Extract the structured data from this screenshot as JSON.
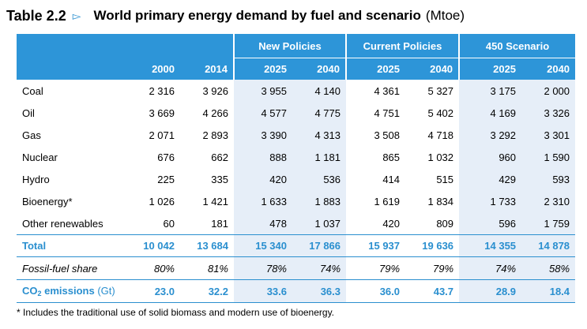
{
  "title": {
    "number": "Table 2.2",
    "arrow": "▻",
    "main": "World primary energy demand by fuel and scenario",
    "unit": "(Mtoe)"
  },
  "header": {
    "groups": [
      "New Policies",
      "Current Policies",
      "450 Scenario"
    ],
    "years": [
      "2000",
      "2014",
      "2025",
      "2040",
      "2025",
      "2040",
      "2025",
      "2040"
    ]
  },
  "rows": [
    {
      "label": "Coal",
      "values": [
        "2 316",
        "3 926",
        "3 955",
        "4 140",
        "4 361",
        "5 327",
        "3 175",
        "2 000"
      ]
    },
    {
      "label": "Oil",
      "values": [
        "3 669",
        "4 266",
        "4 577",
        "4 775",
        "4 751",
        "5 402",
        "4 169",
        "3 326"
      ]
    },
    {
      "label": "Gas",
      "values": [
        "2 071",
        "2 893",
        "3 390",
        "4 313",
        "3 508",
        "4 718",
        "3 292",
        "3 301"
      ]
    },
    {
      "label": "Nuclear",
      "values": [
        "676",
        "662",
        "888",
        "1 181",
        "865",
        "1 032",
        "960",
        "1 590"
      ]
    },
    {
      "label": "Hydro",
      "values": [
        "225",
        "335",
        "420",
        "536",
        "414",
        "515",
        "429",
        "593"
      ]
    },
    {
      "label": "Bioenergy*",
      "values": [
        "1 026",
        "1 421",
        "1 633",
        "1 883",
        "1 619",
        "1 834",
        "1 733",
        "2 310"
      ]
    },
    {
      "label": "Other renewables",
      "values": [
        "60",
        "181",
        "478",
        "1 037",
        "420",
        "809",
        "596",
        "1 759"
      ]
    }
  ],
  "total": {
    "label": "Total",
    "values": [
      "10 042",
      "13 684",
      "15 340",
      "17 866",
      "15 937",
      "19 636",
      "14 355",
      "14 878"
    ]
  },
  "fossil_share": {
    "label": "Fossil-fuel share",
    "values": [
      "80%",
      "81%",
      "78%",
      "74%",
      "79%",
      "79%",
      "74%",
      "58%"
    ]
  },
  "co2": {
    "label_main": "CO",
    "label_sub": "2",
    "label_rest": " emissions",
    "label_unit": "(Gt)",
    "values": [
      "23.0",
      "32.2",
      "33.6",
      "36.3",
      "36.0",
      "43.7",
      "28.9",
      "18.4"
    ]
  },
  "footnote": "* Includes the traditional use of solid biomass and modern use of bioenergy.",
  "colors": {
    "accent": "#2d95d8",
    "shade": "#e6eef8",
    "text_accent": "#2a8fcf"
  }
}
